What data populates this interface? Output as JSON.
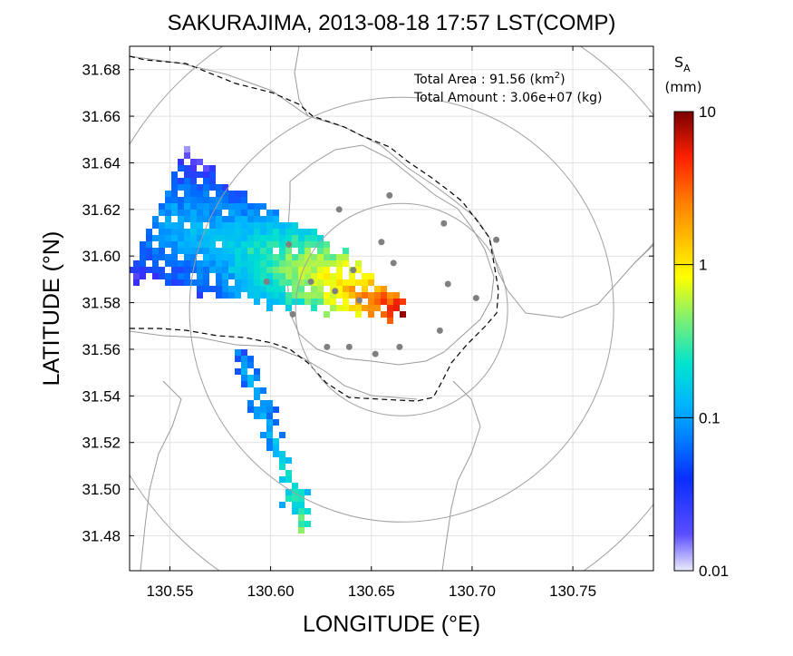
{
  "title": "SAKURAJIMA, 2013-08-18 17:57 LST(COMP)",
  "xlabel": "LONGITUDE (°E)",
  "ylabel": "LATITUDE (°N)",
  "info": {
    "area_label": "Total Area   : 91.56 (km",
    "area_sup": "2",
    "area_close": ")",
    "amount_label": "Total Amount : 3.06e+07 (kg)"
  },
  "colorbar": {
    "label_main": "S",
    "label_sub": "A",
    "unit": "(mm)",
    "scale": "log",
    "range": [
      0.01,
      10
    ],
    "ticks": [
      {
        "value": 10,
        "label": "10"
      },
      {
        "value": 1,
        "label": "1"
      },
      {
        "value": 0.1,
        "label": "0.1"
      },
      {
        "value": 0.01,
        "label": "0.01"
      }
    ],
    "colors": [
      "#e8e8fb",
      "#3c28ff",
      "#0066ff",
      "#00b4ff",
      "#00e0d0",
      "#9df25a",
      "#ffff00",
      "#ffa500",
      "#ff4000",
      "#e00000",
      "#7a0000"
    ]
  },
  "chart_data": {
    "type": "heatmap",
    "title": "SAKURAJIMA, 2013-08-18 17:57 LST(COMP)",
    "xlabel": "LONGITUDE (°E)",
    "ylabel": "LATITUDE (°N)",
    "xlim": [
      130.53,
      130.79
    ],
    "ylim": [
      31.465,
      31.69
    ],
    "xticks": [
      130.55,
      130.6,
      130.65,
      130.7,
      130.75
    ],
    "xtick_labels": [
      "130.55",
      "130.60",
      "130.65",
      "130.70",
      "130.75"
    ],
    "yticks": [
      31.48,
      31.5,
      31.52,
      31.54,
      31.56,
      31.58,
      31.6,
      31.62,
      31.64,
      31.66,
      31.68
    ],
    "ytick_labels": [
      "31.48",
      "31.50",
      "31.52",
      "31.54",
      "31.56",
      "31.58",
      "31.60",
      "31.62",
      "31.64",
      "31.66",
      "31.68"
    ],
    "grid": true,
    "vent": [
      130.665,
      31.577
    ],
    "range_rings_km": [
      5,
      10,
      15
    ],
    "plume": [
      {
        "lon": 130.665,
        "lat": 31.577,
        "value": 8
      },
      {
        "lon": 130.657,
        "lat": 31.58,
        "value": 3
      },
      {
        "lon": 130.645,
        "lat": 31.584,
        "value": 1.5
      },
      {
        "lon": 130.632,
        "lat": 31.59,
        "value": 0.8
      },
      {
        "lon": 130.615,
        "lat": 31.595,
        "value": 0.4
      },
      {
        "lon": 130.595,
        "lat": 31.601,
        "value": 0.2
      },
      {
        "lon": 130.575,
        "lat": 31.607,
        "value": 0.1
      },
      {
        "lon": 130.555,
        "lat": 31.614,
        "value": 0.08
      },
      {
        "lon": 130.54,
        "lat": 31.62,
        "value": 0.06
      }
    ],
    "stream": [
      {
        "lon": 130.583,
        "lat": 31.56,
        "value": 0.06
      },
      {
        "lon": 130.59,
        "lat": 31.545,
        "value": 0.08
      },
      {
        "lon": 130.597,
        "lat": 31.53,
        "value": 0.07
      },
      {
        "lon": 130.605,
        "lat": 31.512,
        "value": 0.15
      },
      {
        "lon": 130.612,
        "lat": 31.495,
        "value": 0.2
      },
      {
        "lon": 130.616,
        "lat": 31.482,
        "value": 0.25
      }
    ],
    "stations": [
      [
        130.659,
        31.626
      ],
      [
        130.634,
        31.62
      ],
      [
        130.686,
        31.614
      ],
      [
        130.609,
        31.605
      ],
      [
        130.655,
        31.606
      ],
      [
        130.712,
        31.607
      ],
      [
        130.661,
        31.597
      ],
      [
        130.598,
        31.589
      ],
      [
        130.641,
        31.594
      ],
      [
        130.62,
        31.589
      ],
      [
        130.632,
        31.585
      ],
      [
        130.644,
        31.581
      ],
      [
        130.688,
        31.588
      ],
      [
        130.702,
        31.582
      ],
      [
        130.611,
        31.575
      ],
      [
        130.684,
        31.568
      ],
      [
        130.628,
        31.561
      ],
      [
        130.639,
        31.561
      ],
      [
        130.664,
        31.561
      ],
      [
        130.652,
        31.558
      ]
    ]
  }
}
